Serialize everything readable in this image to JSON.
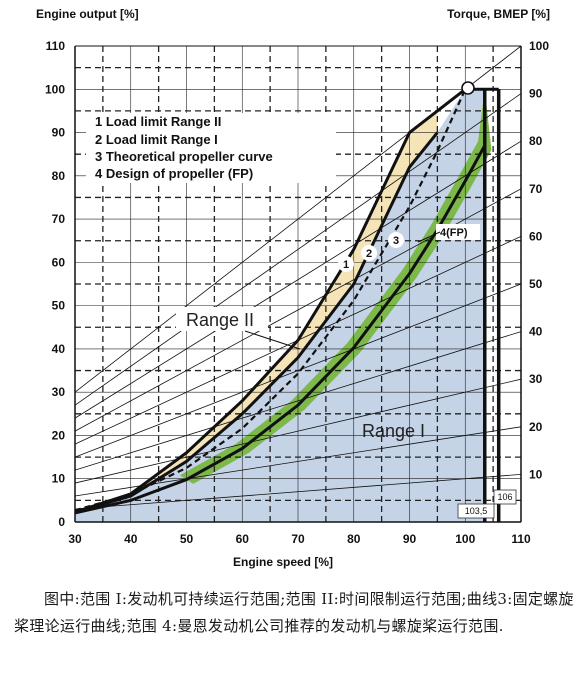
{
  "chart_data": {
    "type": "line",
    "y_left_title": "Engine output [%]",
    "y_right_title": "Torque, BMEP [%]",
    "x_title": "Engine speed [%]",
    "xlim": [
      30,
      110
    ],
    "ylim": [
      0,
      110
    ],
    "x_ticks": [
      "30",
      "40",
      "50",
      "60",
      "70",
      "80",
      "90",
      "100",
      "110"
    ],
    "y_left_ticks": [
      "0",
      "10",
      "20",
      "30",
      "40",
      "50",
      "60",
      "70",
      "80",
      "90",
      "100",
      "110"
    ],
    "y_right_ticks": [
      "10",
      "20",
      "30",
      "40",
      "50",
      "60",
      "70",
      "80",
      "90",
      "100"
    ],
    "legend_items": [
      "1   Load limit Range II",
      "2   Load limit Range I",
      "3   Theoretical propeller curve",
      "4   Design of propeller (FP)"
    ],
    "series": [
      {
        "name": "1",
        "x": [
          30,
          40,
          50,
          60,
          70,
          80,
          90,
          95
        ],
        "y": [
          2.3,
          6.5,
          16,
          28,
          42,
          63,
          90,
          95
        ]
      },
      {
        "name": "2",
        "x": [
          30,
          40,
          50,
          60,
          70,
          80,
          90,
          95
        ],
        "y": [
          2.3,
          6.0,
          14,
          25,
          38,
          55,
          82,
          90
        ]
      },
      {
        "name": "3",
        "x": [
          30,
          40,
          50,
          60,
          70,
          80,
          90,
          95,
          100
        ],
        "y": [
          2.7,
          6.4,
          12.5,
          21.6,
          34.3,
          51.2,
          72.9,
          85.7,
          100
        ]
      },
      {
        "name": "4(FP)",
        "x": [
          30,
          40,
          50,
          60,
          70,
          80,
          90,
          95,
          100,
          103.5
        ],
        "y": [
          2.1,
          5.0,
          9.8,
          17.0,
          27.0,
          40.3,
          57.4,
          67.5,
          78.8,
          87
        ]
      }
    ],
    "torque_levels": [
      10,
      20,
      30,
      40,
      50,
      60,
      70,
      80,
      90,
      100
    ],
    "speed_limits": [
      "103,5",
      "106"
    ],
    "annotations": [
      "Range II",
      "Range I",
      "1",
      "2",
      "3",
      "4(FP)"
    ],
    "colors": {
      "range_i_fill": "#c5d3e6",
      "range_ii_fill": "#f4e4b8",
      "fp_band_fill": "#7db84a",
      "axis_line": "#111111"
    }
  },
  "caption": "图中:范围 I:发动机可持续运行范围;范围 II:时间限制运行范围;曲线3:固定螺旋桨理论运行曲线;范围 4:曼恩发动机公司推荐的发动机与螺旋桨运行范围."
}
